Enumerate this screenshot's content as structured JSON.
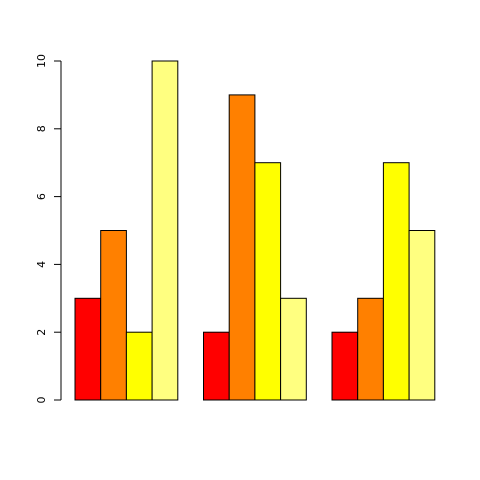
{
  "chart_data": {
    "type": "bar",
    "title": "",
    "xlabel": "",
    "ylabel": "",
    "ylim": [
      0,
      10
    ],
    "y_ticks": [
      0,
      2,
      4,
      6,
      8,
      10
    ],
    "grid": false,
    "legend": "none",
    "bar_mode": "grouped",
    "group_count": 3,
    "colors": [
      "#ff0000",
      "#ff8000",
      "#ffff00",
      "#ffff80"
    ],
    "series": [
      {
        "values": [
          3,
          2,
          2
        ]
      },
      {
        "values": [
          5,
          9,
          3
        ]
      },
      {
        "values": [
          2,
          7,
          7
        ]
      },
      {
        "values": [
          10,
          3,
          5
        ]
      }
    ]
  }
}
